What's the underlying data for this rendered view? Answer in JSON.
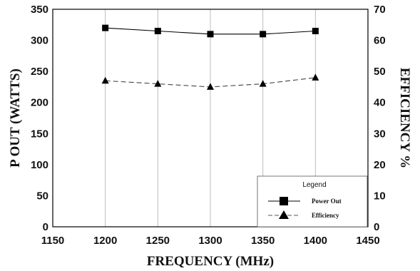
{
  "chart_data": {
    "type": "line",
    "xlabel": "FREQUENCY (MHz)",
    "ylabel": "P OUT (WATTS)",
    "y2label": "EFFICIENCY %",
    "xlim": [
      1150,
      1450
    ],
    "ylim": [
      0,
      350
    ],
    "y2lim": [
      0,
      70
    ],
    "xticks": [
      "1150",
      "1200",
      "1250",
      "1300",
      "1350",
      "1400",
      "1450"
    ],
    "yticks": [
      "0",
      "50",
      "100",
      "150",
      "200",
      "250",
      "300",
      "350"
    ],
    "y2ticks": [
      "0",
      "10",
      "20",
      "30",
      "40",
      "50",
      "60",
      "70"
    ],
    "grid": "vertical",
    "legend": {
      "title": "Legend",
      "placement": "bottom-right",
      "entries": [
        "Power Out",
        "Efficiency"
      ]
    },
    "series": [
      {
        "name": "Power Out",
        "axis": "left",
        "marker": "square",
        "line": "solid",
        "x": [
          1200,
          1250,
          1300,
          1350,
          1400
        ],
        "values": [
          320,
          315,
          310,
          310,
          315
        ]
      },
      {
        "name": "Efficiency",
        "axis": "right",
        "marker": "triangle",
        "line": "dashed",
        "x": [
          1200,
          1250,
          1300,
          1350,
          1400
        ],
        "values": [
          47,
          46,
          45,
          46,
          48
        ]
      }
    ]
  }
}
